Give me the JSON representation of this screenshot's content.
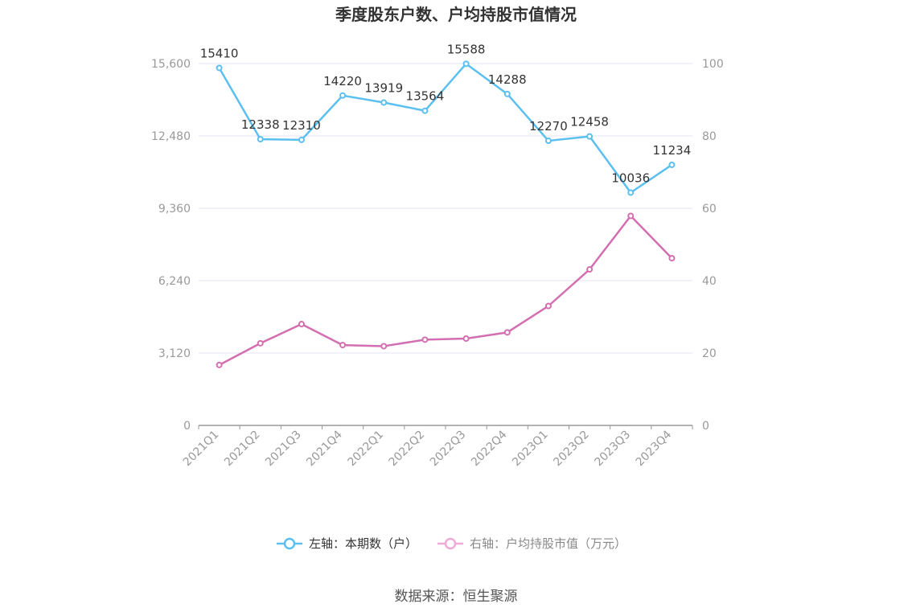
{
  "chart_data": {
    "type": "line",
    "title": "季度股东户数、户均持股市值情况",
    "categories": [
      "2021Q1",
      "2021Q2",
      "2021Q3",
      "2021Q4",
      "2022Q1",
      "2022Q2",
      "2022Q3",
      "2022Q4",
      "2023Q1",
      "2023Q2",
      "2023Q3",
      "2023Q4"
    ],
    "left_axis": {
      "ticks": [
        "0",
        "3,120",
        "6,240",
        "9,360",
        "12,480",
        "15,600"
      ],
      "ylim": [
        0,
        15600
      ]
    },
    "right_axis": {
      "ticks": [
        "0",
        "20",
        "40",
        "60",
        "80",
        "100"
      ],
      "ylim": [
        0,
        100
      ]
    },
    "grid": true,
    "legend_placement": "bottom",
    "series": [
      {
        "name": "左轴：本期数（户）",
        "axis": "left",
        "color": "#5bc0f0",
        "values": [
          15410,
          12338,
          12310,
          14220,
          13919,
          13564,
          15588,
          14288,
          12270,
          12458,
          10036,
          11234
        ],
        "data_labels": [
          "15410",
          "12338",
          "12310",
          "14220",
          "13919",
          "13564",
          "15588",
          "14288",
          "12270",
          "12458",
          "10036",
          "11234"
        ]
      },
      {
        "name": "右轴：户均持股市值（万元）",
        "axis": "right",
        "color": "#d36fb0",
        "values": [
          16.7,
          22.7,
          28.0,
          22.2,
          21.9,
          23.7,
          24.0,
          25.7,
          33.0,
          43.1,
          57.9,
          46.2
        ]
      }
    ],
    "source": "数据来源：恒生聚源"
  }
}
